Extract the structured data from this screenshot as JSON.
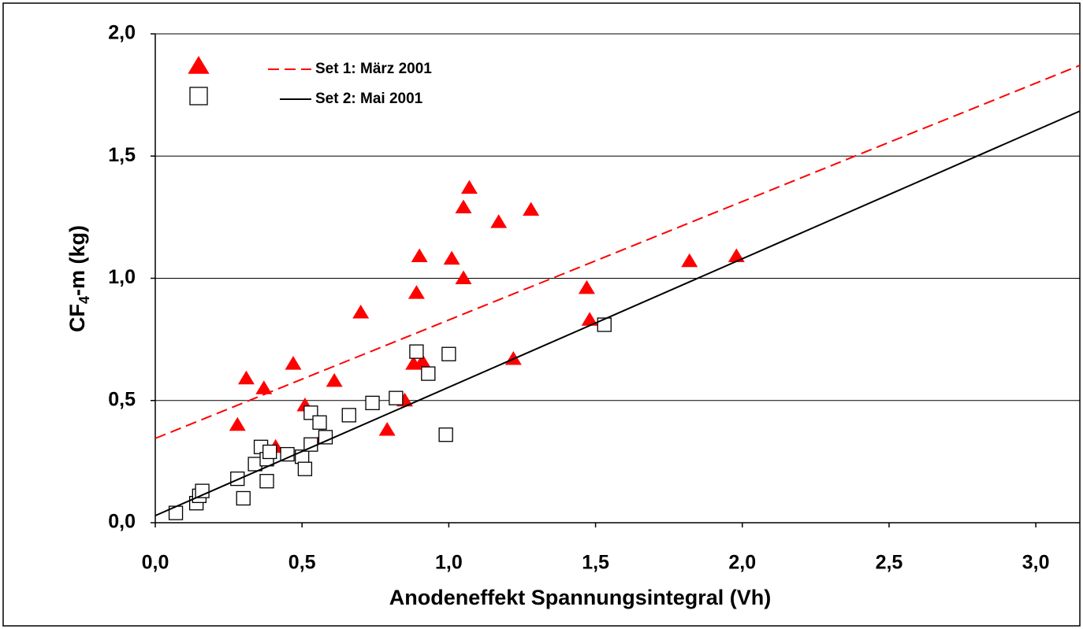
{
  "chart_data": {
    "type": "scatter",
    "xlabel": "Anodeneffekt Spannungsintegral (Vh)",
    "ylabel": [
      "CF",
      "4",
      "-m (kg)"
    ],
    "xlim": [
      0,
      3.15
    ],
    "ylim": [
      0,
      2
    ],
    "xticks": [
      {
        "value": 0,
        "label": "0,0"
      },
      {
        "value": 0.5,
        "label": "0,5"
      },
      {
        "value": 1,
        "label": "1,0"
      },
      {
        "value": 1.5,
        "label": "1,5"
      },
      {
        "value": 2,
        "label": "2,0"
      },
      {
        "value": 2.5,
        "label": "2,5"
      },
      {
        "value": 3,
        "label": "3,0"
      }
    ],
    "yticks": [
      {
        "value": 0,
        "label": "0,0"
      },
      {
        "value": 0.5,
        "label": "0,5"
      },
      {
        "value": 1,
        "label": "1,0"
      },
      {
        "value": 1.5,
        "label": "1,5"
      },
      {
        "value": 2,
        "label": "2,0"
      }
    ],
    "grid": true,
    "legend": "upper left",
    "series": [
      {
        "name": "Set 1: März 2001",
        "color": "#ff0000",
        "marker": "triangle",
        "line_dash": "dashed",
        "x": [
          0.28,
          0.31,
          0.37,
          0.41,
          0.47,
          0.51,
          0.57,
          0.61,
          0.7,
          0.79,
          0.85,
          0.88,
          0.89,
          0.9,
          0.91,
          1.01,
          1.05,
          1.05,
          1.07,
          1.17,
          1.28,
          1.22,
          1.47,
          1.48,
          1.82,
          1.98
        ],
        "values": [
          0.4,
          0.59,
          0.55,
          0.31,
          0.65,
          0.48,
          0.35,
          0.58,
          0.86,
          0.38,
          0.5,
          0.65,
          0.94,
          1.09,
          0.66,
          1.08,
          1.0,
          1.29,
          1.37,
          1.23,
          1.28,
          0.67,
          0.96,
          0.83,
          1.07,
          1.09
        ],
        "trend_x": [
          0,
          3.15
        ],
        "trend_y": [
          0.345,
          1.871
        ]
      },
      {
        "name": "Set 2: Mai 2001",
        "color": "#000000",
        "marker": "square",
        "line_dash": "solid",
        "x": [
          0.07,
          0.14,
          0.15,
          0.16,
          0.28,
          0.3,
          0.34,
          0.36,
          0.38,
          0.39,
          0.38,
          0.45,
          0.5,
          0.51,
          0.53,
          0.53,
          0.56,
          0.58,
          0.66,
          0.74,
          0.82,
          0.89,
          0.93,
          0.99,
          1.0,
          1.53
        ],
        "values": [
          0.04,
          0.08,
          0.11,
          0.13,
          0.18,
          0.1,
          0.24,
          0.31,
          0.26,
          0.29,
          0.17,
          0.28,
          0.27,
          0.22,
          0.45,
          0.32,
          0.41,
          0.35,
          0.44,
          0.49,
          0.51,
          0.7,
          0.61,
          0.36,
          0.69,
          0.81
        ],
        "trend_x": [
          0,
          3.15
        ],
        "trend_y": [
          0.029,
          1.684
        ]
      }
    ]
  }
}
